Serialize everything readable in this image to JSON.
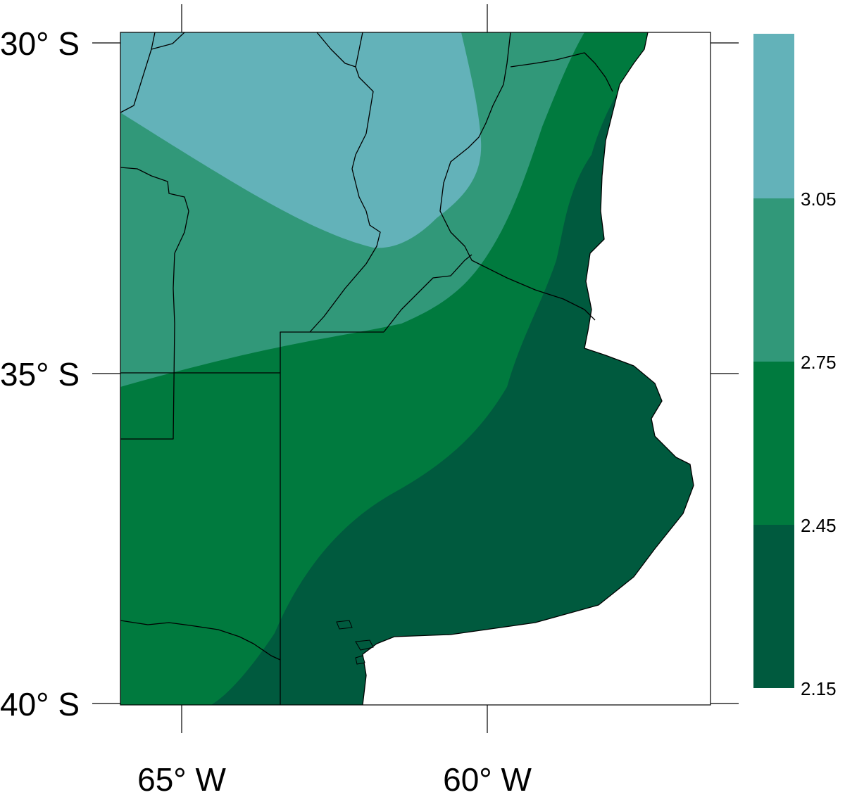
{
  "map": {
    "lat_labels": [
      "30° S",
      "35° S",
      "40° S"
    ],
    "lon_labels": [
      "65° W",
      "60° W"
    ],
    "colors": {
      "band_top": "#63b2b9",
      "band_2": "#319879",
      "band_3": "#007a3e",
      "band_low": "#005a3e",
      "sea": "#ffffff"
    }
  },
  "legend": {
    "values": [
      "3.05",
      "2.75",
      "2.45",
      "2.15"
    ],
    "colors": [
      "#63b2b9",
      "#319879",
      "#007a3e",
      "#005a3e"
    ]
  }
}
